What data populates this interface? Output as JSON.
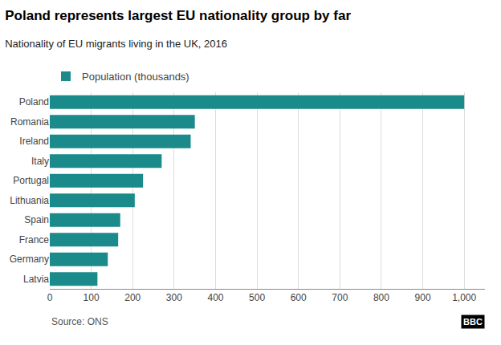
{
  "chart_data": {
    "type": "bar",
    "orientation": "horizontal",
    "title": "Poland represents largest EU nationality group by far",
    "subtitle": "Nationality of EU migrants living in the UK, 2016",
    "categories": [
      "Poland",
      "Romania",
      "Ireland",
      "Italy",
      "Portugal",
      "Lithuania",
      "Spain",
      "France",
      "Germany",
      "Latvia"
    ],
    "series": [
      {
        "name": "Population (thousands)",
        "color": "#1a8a8a",
        "values": [
          1000,
          350,
          340,
          270,
          225,
          205,
          170,
          165,
          140,
          115
        ]
      }
    ],
    "xlim": [
      0,
      1050
    ],
    "xticks": [
      0,
      100,
      200,
      300,
      400,
      500,
      600,
      700,
      800,
      900,
      {
        "value": 1000,
        "label": "1,000"
      }
    ],
    "grid": true,
    "legend": "top left",
    "annotations": [
      "Source: ONS",
      "BBC"
    ]
  }
}
